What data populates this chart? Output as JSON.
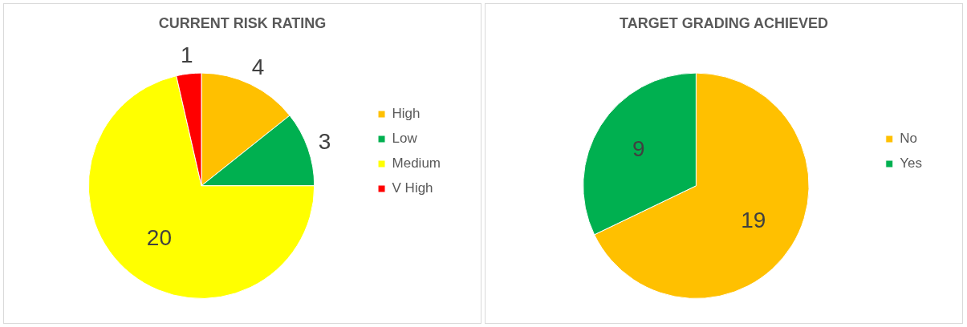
{
  "chart_data": [
    {
      "type": "pie",
      "title": "CURRENT RISK RATING",
      "categories": [
        "High",
        "Low",
        "Medium",
        "V High"
      ],
      "values": [
        4,
        3,
        20,
        1
      ],
      "colors": [
        "#ffc000",
        "#00b050",
        "#ffff00",
        "#ff0000"
      ],
      "data_labels": true,
      "legend": "right"
    },
    {
      "type": "pie",
      "title": "TARGET GRADING ACHIEVED",
      "categories": [
        "No",
        "Yes"
      ],
      "values": [
        19,
        9
      ],
      "colors": [
        "#ffc000",
        "#00b050"
      ],
      "data_labels": true,
      "legend": "right"
    }
  ]
}
